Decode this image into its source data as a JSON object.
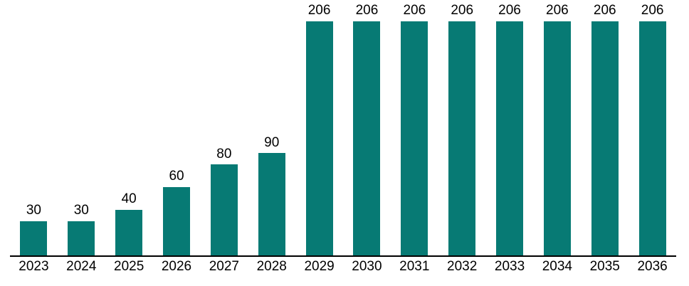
{
  "chart_data": {
    "type": "bar",
    "title": "",
    "xlabel": "",
    "ylabel": "",
    "categories": [
      "2023",
      "2024",
      "2025",
      "2026",
      "2027",
      "2028",
      "2029",
      "2030",
      "2031",
      "2032",
      "2033",
      "2034",
      "2035",
      "2036"
    ],
    "values": [
      30,
      30,
      40,
      60,
      80,
      90,
      206,
      206,
      206,
      206,
      206,
      206,
      206,
      206
    ],
    "ylim": [
      0,
      225
    ],
    "grid": false,
    "legend_position": "none",
    "data_labels_shown": true,
    "colors": {
      "bar": "#077A74",
      "label_text": "#000000",
      "tick_text": "#000000",
      "axis_line": "#000000",
      "background": "#FFFFFF"
    }
  }
}
